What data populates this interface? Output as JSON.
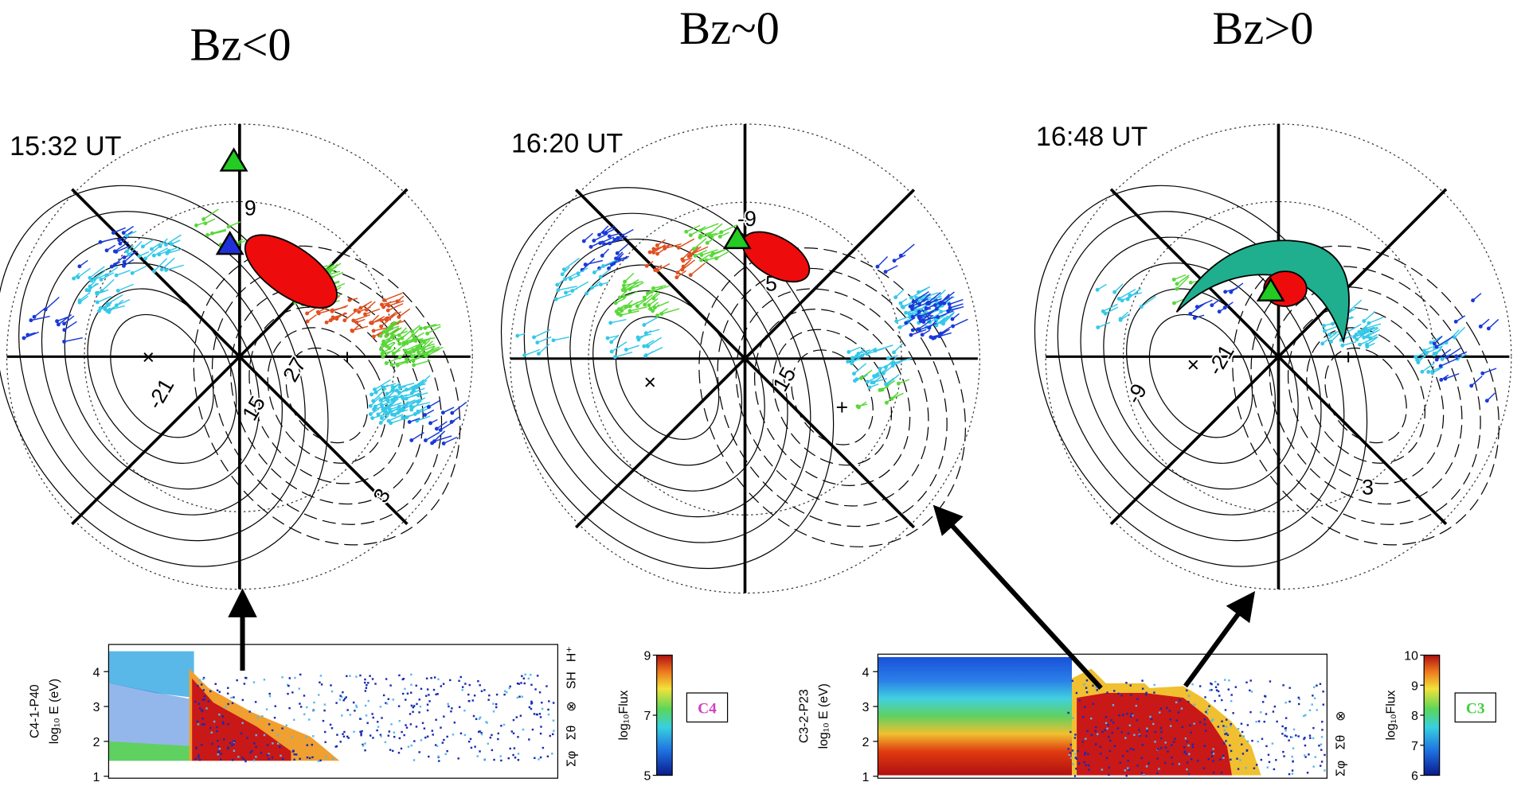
{
  "titles": [
    "Bz<0",
    "Bz~0",
    "Bz>0"
  ],
  "panels": [
    {
      "time": "15:32 UT",
      "contour_labels": [
        "9",
        "-21",
        "15",
        "27",
        "3"
      ]
    },
    {
      "time": "16:20 UT",
      "contour_labels": [
        "-9",
        "5",
        "15"
      ]
    },
    {
      "time": "16:48 UT",
      "contour_labels": [
        "-9",
        "-21",
        "3"
      ]
    }
  ],
  "spectrograms": [
    {
      "id": "C4-1-P40",
      "ylabel": "log₁₀ E (eV)",
      "yticks": [
        1,
        2,
        3,
        4
      ],
      "side_labels": [
        "H⁺",
        "SH",
        "⊗",
        "Σθ",
        "Σφ"
      ],
      "colorbar_label": "log₁₀Flux",
      "colorbar_ticks": [
        5,
        7,
        9
      ],
      "spacecraft": "C4"
    },
    {
      "id": "C3-2-P23",
      "ylabel": "log₁₀ E (eV)",
      "yticks": [
        1,
        2,
        3,
        4
      ],
      "side_labels": [
        "⊗",
        "Σθ",
        "Σφ"
      ],
      "colorbar_label": "log₁₀Flux",
      "colorbar_ticks": [
        6,
        7,
        8,
        9,
        10
      ],
      "spacecraft": "C3"
    }
  ]
}
